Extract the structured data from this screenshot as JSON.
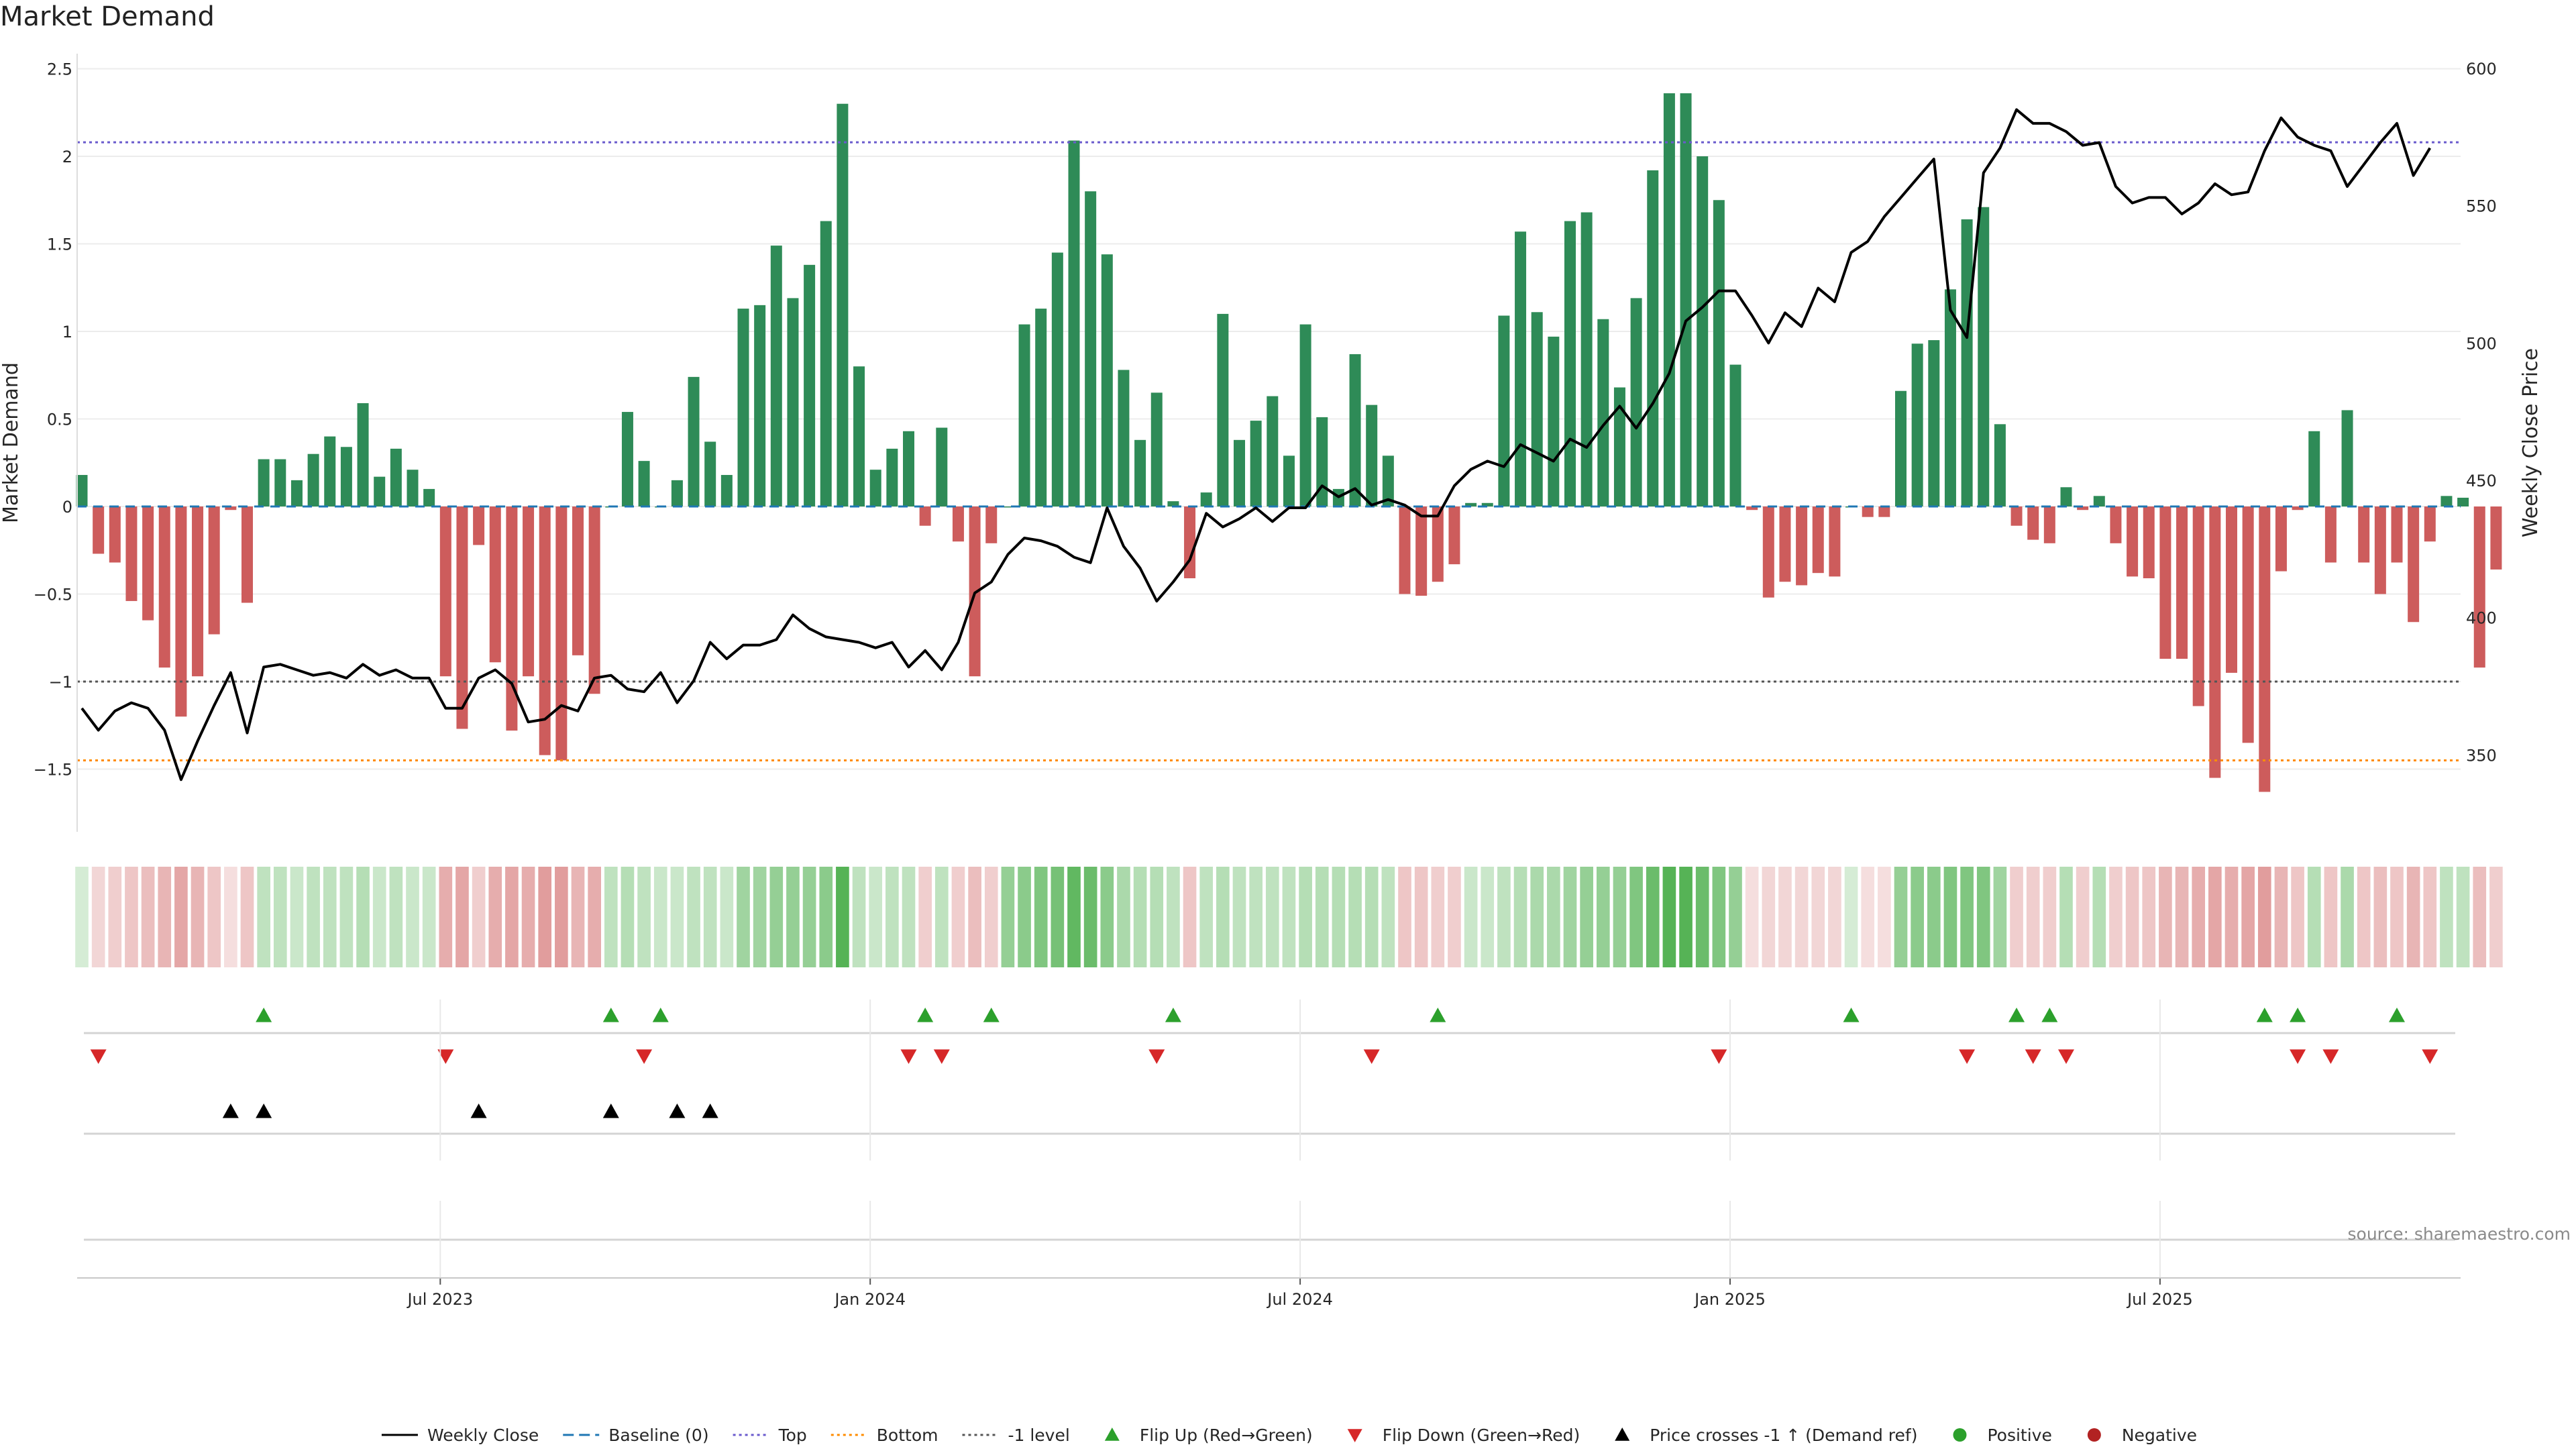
{
  "title": "Market Demand",
  "source": "source: sharemaestro.com",
  "colors": {
    "positive_bar": "#2e8b57",
    "negative_bar": "#cd5c5c",
    "price_line": "#000000",
    "baseline": "#1f77b4",
    "top_line": "#6a5acd",
    "bottom_line": "#ff8c00",
    "minus1_line": "#555555",
    "flip_up": "#2ca02c",
    "flip_down": "#d62728",
    "cross": "#000000",
    "positive_dot": "#2ca02c",
    "negative_dot": "#b22222"
  },
  "chart_data": {
    "type": "bar",
    "title": "Market Demand",
    "ylabel": "Market Demand",
    "y2label": "Weekly Close Price",
    "ylim": [
      -1.85,
      2.5
    ],
    "y2lim": [
      322,
      600
    ],
    "y_ticks": [
      -1.5,
      -1,
      -0.5,
      0,
      0.5,
      1,
      1.5,
      2,
      2.5
    ],
    "y_tick_labels": [
      "−1.5",
      "−1",
      "−0.5",
      "0",
      "0.5",
      "1",
      "1.5",
      "2",
      "2.5"
    ],
    "y2_ticks": [
      350,
      400,
      450,
      500,
      550,
      600
    ],
    "y2_tick_labels": [
      "350",
      "400",
      "450",
      "500",
      "550",
      "600"
    ],
    "x_tick_labels": [
      "Jul 2023",
      "Jan 2024",
      "Jul 2024",
      "Jan 2025",
      "Jul 2025"
    ],
    "x_tick_weeks": [
      22,
      48,
      74,
      100,
      126
    ],
    "reference_lines": {
      "top": 2.08,
      "bottom": -1.45,
      "minus_one": -1.0
    },
    "grid": true,
    "legend_position": "bottom",
    "demand": [
      0.18,
      -0.27,
      -0.32,
      -0.54,
      -0.65,
      -0.92,
      -1.2,
      -0.97,
      -0.73,
      -0.02,
      -0.55,
      0.27,
      0.27,
      0.15,
      0.3,
      0.4,
      0.34,
      0.59,
      0.17,
      0.33,
      0.21,
      0.1,
      -0.97,
      -1.27,
      -0.22,
      -0.89,
      -1.28,
      -0.97,
      -1.42,
      -1.45,
      -0.85,
      -1.07,
      0.0,
      0.54,
      0.26,
      0.0,
      0.15,
      0.74,
      0.37,
      0.18,
      1.13,
      1.15,
      1.49,
      1.19,
      1.38,
      1.63,
      2.3,
      0.8,
      0.21,
      0.33,
      0.43,
      -0.11,
      0.45,
      -0.2,
      -0.97,
      -0.21,
      0.0,
      1.04,
      1.13,
      1.45,
      2.09,
      1.8,
      1.44,
      0.78,
      0.38,
      0.65,
      0.03,
      -0.41,
      0.08,
      1.1,
      0.38,
      0.49,
      0.63,
      0.29,
      1.04,
      0.51,
      0.1,
      0.87,
      0.58,
      0.29,
      -0.5,
      -0.51,
      -0.43,
      -0.33,
      0.02,
      0.02,
      1.09,
      1.57,
      1.11,
      0.97,
      1.63,
      1.68,
      1.07,
      0.68,
      1.19,
      1.92,
      2.36,
      2.36,
      2.0,
      1.75,
      0.81,
      -0.02,
      -0.52,
      -0.43,
      -0.45,
      -0.38,
      -0.4,
      0.0,
      -0.06,
      -0.06,
      0.66,
      0.93,
      0.95,
      1.24,
      1.64,
      1.71,
      0.47,
      -0.11,
      -0.19,
      -0.21,
      0.11,
      -0.02,
      0.06,
      -0.21,
      -0.4,
      -0.41,
      -0.87,
      -0.87,
      -1.14,
      -1.55,
      -0.95,
      -1.35,
      -1.63,
      -0.37,
      -0.02,
      0.43,
      -0.32,
      0.55,
      -0.32,
      -0.5,
      -0.32,
      -0.66,
      -0.2,
      0.06,
      0.05,
      -0.92,
      -0.36
    ],
    "weekly_close": [
      367,
      359,
      366,
      369,
      367,
      359,
      341,
      355,
      368,
      380,
      358,
      382,
      383,
      381,
      379,
      380,
      378,
      383,
      379,
      381,
      378,
      378,
      367,
      367,
      378,
      381,
      376,
      362,
      363,
      368,
      366,
      378,
      379,
      374,
      373,
      380,
      369,
      377,
      391,
      385,
      390,
      390,
      392,
      401,
      396,
      393,
      392,
      391,
      389,
      391,
      382,
      388,
      381,
      391,
      409,
      413,
      423,
      429,
      428,
      426,
      422,
      420,
      440,
      426,
      418,
      406,
      413,
      421,
      438,
      433,
      436,
      440,
      435,
      440,
      440,
      448,
      444,
      447,
      441,
      443,
      441,
      437,
      437,
      448,
      454,
      457,
      455,
      463,
      460,
      457,
      465,
      462,
      470,
      477,
      469,
      478,
      489,
      508,
      513,
      519,
      519,
      510,
      500,
      511,
      506,
      520,
      515,
      533,
      537,
      546,
      553,
      560,
      567,
      512,
      502,
      562,
      571,
      585,
      580,
      580,
      577,
      572,
      573,
      557,
      551,
      553,
      553,
      547,
      551,
      558,
      554,
      555,
      570,
      582,
      575,
      572,
      570,
      557,
      565,
      573,
      580,
      561,
      571
    ],
    "bucket_intensity": [
      0.2,
      0.25,
      0.3,
      0.35,
      0.4,
      0.45,
      0.55,
      0.45,
      0.35,
      0.2,
      0.35,
      0.3,
      0.3,
      0.25,
      0.3,
      0.3,
      0.3,
      0.35,
      0.25,
      0.3,
      0.25,
      0.25,
      0.5,
      0.55,
      0.3,
      0.5,
      0.55,
      0.5,
      0.6,
      0.6,
      0.45,
      0.5,
      0.3,
      0.35,
      0.3,
      0.25,
      0.25,
      0.3,
      0.3,
      0.25,
      0.45,
      0.45,
      0.5,
      0.5,
      0.5,
      0.55,
      0.8,
      0.3,
      0.25,
      0.3,
      0.3,
      0.3,
      0.3,
      0.3,
      0.4,
      0.3,
      0.5,
      0.55,
      0.6,
      0.65,
      0.75,
      0.7,
      0.55,
      0.4,
      0.35,
      0.35,
      0.3,
      0.35,
      0.3,
      0.35,
      0.3,
      0.3,
      0.3,
      0.3,
      0.35,
      0.35,
      0.35,
      0.35,
      0.35,
      0.3,
      0.35,
      0.35,
      0.3,
      0.3,
      0.25,
      0.25,
      0.3,
      0.35,
      0.4,
      0.4,
      0.45,
      0.5,
      0.5,
      0.5,
      0.6,
      0.7,
      0.8,
      0.8,
      0.7,
      0.6,
      0.5,
      0.2,
      0.25,
      0.25,
      0.25,
      0.25,
      0.25,
      0.2,
      0.2,
      0.2,
      0.5,
      0.55,
      0.55,
      0.6,
      0.6,
      0.6,
      0.45,
      0.3,
      0.3,
      0.3,
      0.35,
      0.3,
      0.35,
      0.3,
      0.35,
      0.35,
      0.45,
      0.45,
      0.5,
      0.55,
      0.5,
      0.55,
      0.6,
      0.45,
      0.35,
      0.35,
      0.35,
      0.4,
      0.35,
      0.4,
      0.35,
      0.45,
      0.35,
      0.3,
      0.3,
      0.4,
      0.3
    ],
    "flip_up_weeks": [
      11,
      32,
      35,
      51,
      55,
      66,
      82,
      107,
      117,
      119,
      132,
      134,
      140
    ],
    "flip_down_weeks": [
      1,
      22,
      34,
      50,
      52,
      65,
      78,
      99,
      114,
      118,
      120,
      134,
      136,
      142
    ],
    "price_cross_weeks": [
      9,
      11,
      24,
      32,
      36,
      38
    ]
  },
  "legend": {
    "items": [
      {
        "label": "Weekly Close",
        "type": "line-solid",
        "color": "#000000"
      },
      {
        "label": "Baseline (0)",
        "type": "line-dashed",
        "color": "#1f77b4"
      },
      {
        "label": "Top",
        "type": "line-dotted",
        "color": "#6a5acd"
      },
      {
        "label": "Bottom",
        "type": "line-dotted",
        "color": "#ff8c00"
      },
      {
        "label": "-1 level",
        "type": "line-dotted",
        "color": "#555555"
      },
      {
        "label": "Flip Up (Red→Green)",
        "type": "triangle-up",
        "color": "#2ca02c"
      },
      {
        "label": "Flip Down (Green→Red)",
        "type": "triangle-down",
        "color": "#d62728"
      },
      {
        "label": "Price crosses -1 ↑ (Demand ref)",
        "type": "triangle-up",
        "color": "#000000"
      },
      {
        "label": "Positive",
        "type": "dot",
        "color": "#2ca02c"
      },
      {
        "label": "Negative",
        "type": "dot",
        "color": "#b22222"
      }
    ]
  }
}
